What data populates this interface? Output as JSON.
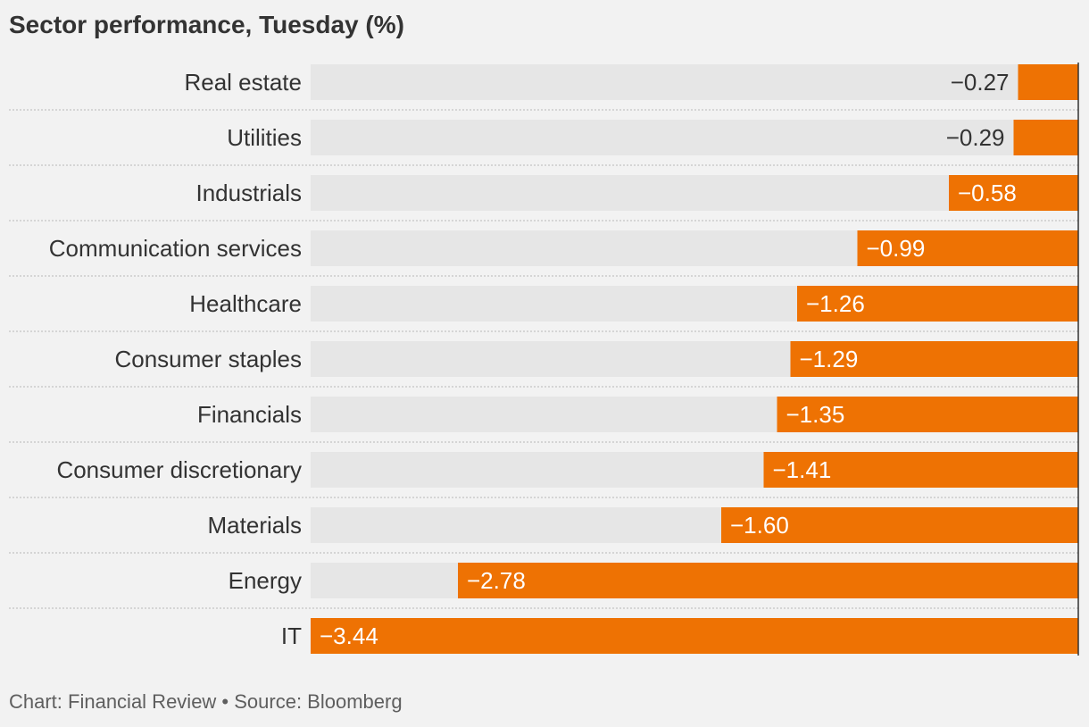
{
  "title": "Sector performance, Tuesday (%)",
  "footer": "Chart: Financial Review • Source: Bloomberg",
  "colors": {
    "bar": "#ee7203",
    "track": "#e6e6e6",
    "background": "#f2f2f2",
    "text": "#333333",
    "label_on_bar": "#ffffff"
  },
  "chart_data": {
    "type": "bar",
    "orientation": "horizontal",
    "categories": [
      "Real estate",
      "Utilities",
      "Industrials",
      "Communication services",
      "Healthcare",
      "Consumer staples",
      "Financials",
      "Consumer discretionary",
      "Materials",
      "Energy",
      "IT"
    ],
    "values": [
      -0.27,
      -0.29,
      -0.58,
      -0.99,
      -1.26,
      -1.29,
      -1.35,
      -1.41,
      -1.6,
      -2.78,
      -3.44
    ],
    "value_labels": [
      "−0.27",
      "−0.29",
      "−0.58",
      "−0.99",
      "−1.26",
      "−1.29",
      "−1.35",
      "−1.41",
      "−1.60",
      "−2.78",
      "−3.44"
    ],
    "xlim": [
      -3.44,
      0
    ],
    "grid": false
  }
}
